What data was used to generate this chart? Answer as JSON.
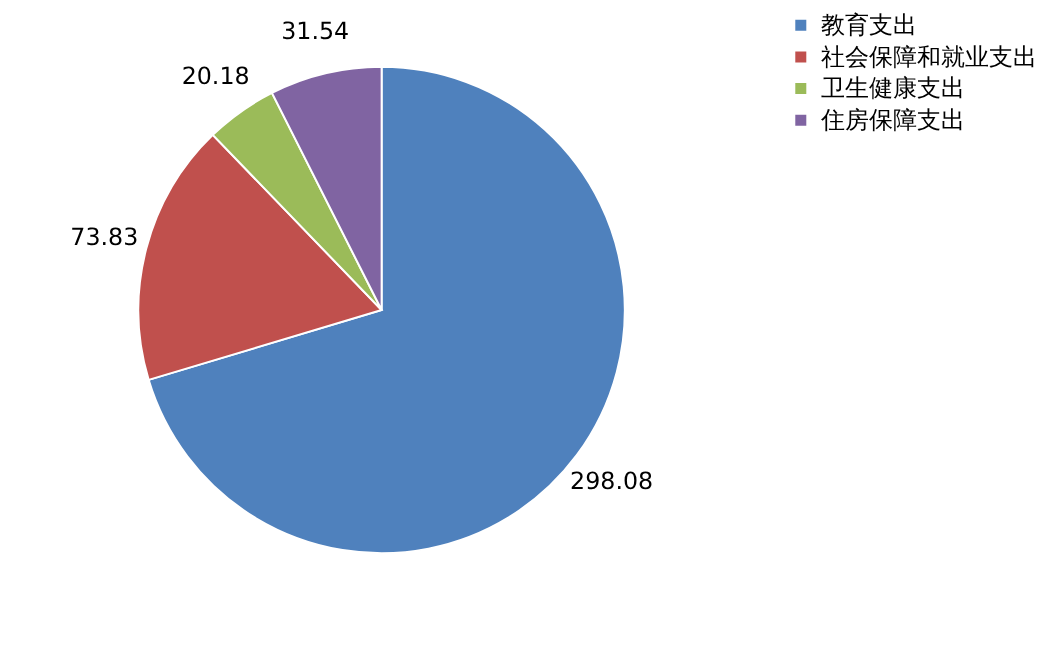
{
  "chart_data": {
    "type": "pie",
    "categories": [
      "教育支出",
      "社会保障和就业支出",
      "卫生健康支出",
      "住房保障支出"
    ],
    "values": [
      298.08,
      73.83,
      20.18,
      31.54
    ],
    "colors": [
      "#4f81bd",
      "#c0504d",
      "#9bbb59",
      "#8064a2"
    ],
    "data_labels": true,
    "legend": "right"
  }
}
